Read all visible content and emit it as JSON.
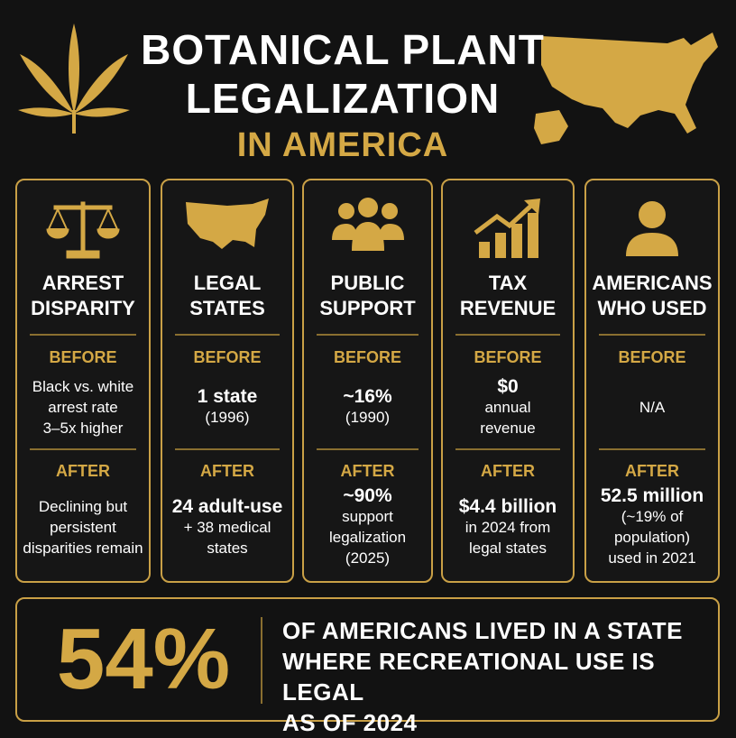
{
  "header": {
    "title_lines": [
      "BOTANICAL PLANT",
      "LEGALIZATION"
    ],
    "subtitle": "IN AMERICA"
  },
  "cards": [
    {
      "title_lines": [
        "ARREST",
        "DISPARITY"
      ],
      "before_label": "BEFORE",
      "before_lines": [
        "Black vs. white",
        "arrest rate",
        "3–5x higher"
      ],
      "after_label": "AFTER",
      "after_lines": [
        "Declining but",
        "persistent",
        "disparities remain"
      ]
    },
    {
      "title_lines": [
        "LEGAL",
        "STATES"
      ],
      "before_label": "BEFORE",
      "before_lines": [
        "1 state",
        "(1996)"
      ],
      "after_label": "AFTER",
      "after_lines": [
        "24 adult-use",
        "+ 38 medical",
        "states"
      ]
    },
    {
      "title_lines": [
        "PUBLIC",
        "SUPPORT"
      ],
      "before_label": "BEFORE",
      "before_lines": [
        "~16%",
        "(1990)"
      ],
      "after_label": "AFTER",
      "after_lines": [
        "~90%",
        "support",
        "legalization",
        "(2025)"
      ]
    },
    {
      "title_lines": [
        "TAX",
        "REVENUE"
      ],
      "before_label": "BEFORE",
      "before_lines": [
        "$0",
        "annual",
        "revenue"
      ],
      "after_label": "AFTER",
      "after_lines": [
        "$4.4 billion",
        "in 2024 from",
        "legal states"
      ]
    },
    {
      "title_lines": [
        "AMERICANS",
        "WHO USED"
      ],
      "before_label": "BEFORE",
      "before_lines": [
        "N/A"
      ],
      "after_label": "AFTER",
      "after_lines": [
        "52.5 million",
        "(~19% of",
        "population)",
        "used in 2021"
      ]
    }
  ],
  "footer": {
    "stat": "54%",
    "text_lines": [
      "OF AMERICANS LIVED IN A STATE",
      "WHERE RECREATIONAL USE IS LEGAL",
      "AS OF 2024"
    ]
  }
}
